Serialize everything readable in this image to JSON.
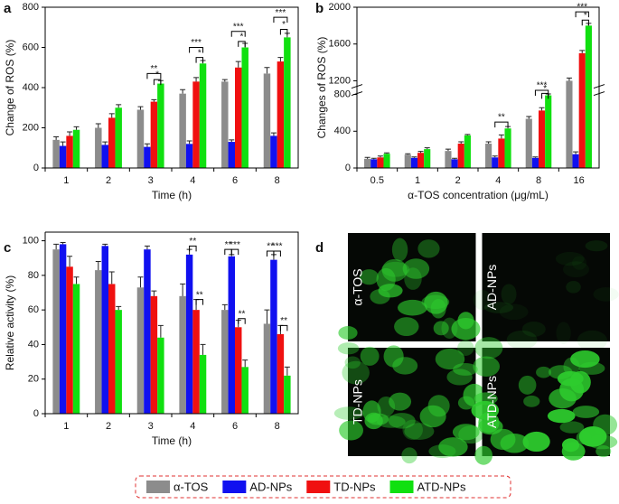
{
  "chart_data": [
    {
      "type": "bar",
      "label": "a",
      "x_label": "Time (h)",
      "y_label": "Change of ROS (%)",
      "categories": [
        "1",
        "2",
        "3",
        "4",
        "6",
        "8"
      ],
      "series": [
        {
          "name": "α-TOS",
          "color": "#8c8c8c",
          "values": [
            140,
            200,
            290,
            370,
            430,
            470
          ],
          "errors": [
            15,
            20,
            15,
            20,
            10,
            30
          ]
        },
        {
          "name": "AD-NPs",
          "color": "#1010f0",
          "values": [
            110,
            115,
            105,
            120,
            130,
            160
          ],
          "errors": [
            20,
            15,
            15,
            15,
            10,
            15
          ]
        },
        {
          "name": "TD-NPs",
          "color": "#f01010",
          "values": [
            160,
            250,
            330,
            430,
            500,
            530
          ],
          "errors": [
            20,
            20,
            10,
            20,
            30,
            20
          ]
        },
        {
          "name": "ATD-NPs",
          "color": "#10e010",
          "values": [
            190,
            300,
            420,
            520,
            600,
            650
          ],
          "errors": [
            15,
            15,
            15,
            15,
            20,
            20
          ]
        }
      ],
      "ylim": [
        0,
        800
      ],
      "yticks": [
        0,
        200,
        400,
        600,
        800
      ],
      "annotations": [
        {
          "text": "**",
          "category": 2,
          "from": 1,
          "to": 3,
          "y": 470
        },
        {
          "text": "*",
          "category": 2,
          "from": 2,
          "to": 3,
          "y": 440
        },
        {
          "text": "***",
          "category": 3,
          "from": 1,
          "to": 3,
          "y": 600
        },
        {
          "text": "*",
          "category": 3,
          "from": 2,
          "to": 3,
          "y": 550
        },
        {
          "text": "***",
          "category": 4,
          "from": 1,
          "to": 3,
          "y": 680
        },
        {
          "text": "*",
          "category": 4,
          "from": 2,
          "to": 3,
          "y": 630
        },
        {
          "text": "***",
          "category": 5,
          "from": 1,
          "to": 3,
          "y": 750
        },
        {
          "text": "*",
          "category": 5,
          "from": 2,
          "to": 3,
          "y": 690
        }
      ]
    },
    {
      "type": "bar",
      "label": "b",
      "x_label": "α-TOS concentration (μg/mL)",
      "y_label": "Changes of ROS (%)",
      "categories": [
        "0.5",
        "1",
        "2",
        "4",
        "8",
        "16"
      ],
      "series": [
        {
          "color": "#8c8c8c",
          "values": [
            100,
            145,
            185,
            265,
            535,
            1200
          ],
          "errors": [
            15,
            10,
            20,
            20,
            25,
            30
          ]
        },
        {
          "color": "#1010f0",
          "values": [
            95,
            110,
            95,
            115,
            110,
            150
          ],
          "errors": [
            10,
            10,
            10,
            15,
            10,
            25
          ]
        },
        {
          "color": "#f01010",
          "values": [
            115,
            165,
            265,
            320,
            625,
            1500
          ],
          "errors": [
            15,
            15,
            20,
            40,
            30,
            30
          ]
        },
        {
          "color": "#10e010",
          "values": [
            155,
            205,
            355,
            430,
            790,
            1800
          ],
          "errors": [
            10,
            15,
            10,
            20,
            30,
            25
          ]
        }
      ],
      "ylim": [
        0,
        2000
      ],
      "y_break": [
        800,
        1150
      ],
      "yticks": [
        0,
        400,
        800,
        1200,
        1600,
        2000
      ],
      "annotations": [
        {
          "text": "**",
          "category": 3,
          "from": 1,
          "to": 3,
          "y": 500
        },
        {
          "text": "***",
          "category": 4,
          "from": 1,
          "to": 3,
          "y": 960
        },
        {
          "text": "*",
          "category": 4,
          "from": 2,
          "to": 3,
          "y": 840
        },
        {
          "text": "***",
          "category": 5,
          "from": 1,
          "to": 3,
          "y": 1950
        },
        {
          "text": "*",
          "category": 5,
          "from": 2,
          "to": 3,
          "y": 1860
        }
      ]
    },
    {
      "type": "bar",
      "label": "c",
      "x_label": "Time (h)",
      "y_label": "Relative activity (%)",
      "categories": [
        "1",
        "2",
        "3",
        "4",
        "6",
        "8"
      ],
      "series": [
        {
          "color": "#8c8c8c",
          "values": [
            95,
            83,
            73,
            68,
            60,
            52
          ],
          "errors": [
            3,
            5,
            6,
            7,
            3,
            8
          ]
        },
        {
          "color": "#1010f0",
          "values": [
            98,
            97,
            95,
            92,
            91,
            89
          ],
          "errors": [
            1,
            1,
            2,
            3,
            1,
            3
          ]
        },
        {
          "color": "#f01010",
          "values": [
            85,
            75,
            68,
            60,
            50,
            46
          ],
          "errors": [
            6,
            7,
            3,
            6,
            4,
            5
          ]
        },
        {
          "color": "#10e010",
          "values": [
            75,
            60,
            44,
            34,
            27,
            22
          ],
          "errors": [
            4,
            2,
            7,
            6,
            4,
            5
          ]
        }
      ],
      "ylim": [
        0,
        105
      ],
      "yticks": [
        0,
        20,
        40,
        60,
        80,
        100
      ],
      "annotations": [
        {
          "text": "**",
          "category": 3,
          "from": 1,
          "to": 2,
          "y": 97
        },
        {
          "text": "**",
          "category": 3,
          "from": 2,
          "to": 3,
          "y": 66
        },
        {
          "text": "**",
          "category": 4,
          "from": 0,
          "to": 1,
          "y": 95
        },
        {
          "text": "***",
          "category": 4,
          "from": 1,
          "to": 2,
          "y": 95
        },
        {
          "text": "**",
          "category": 4,
          "from": 2,
          "to": 3,
          "y": 55
        },
        {
          "text": "**",
          "category": 5,
          "from": 0,
          "to": 1,
          "y": 94
        },
        {
          "text": "***",
          "category": 5,
          "from": 1,
          "to": 2,
          "y": 94
        },
        {
          "text": "**",
          "category": 5,
          "from": 2,
          "to": 3,
          "y": 51
        }
      ]
    },
    {
      "type": "image-grid",
      "label": "d",
      "images": [
        "α-TOS",
        "AD-NPs",
        "TD-NPs",
        "ATD-NPs"
      ]
    }
  ]
}
